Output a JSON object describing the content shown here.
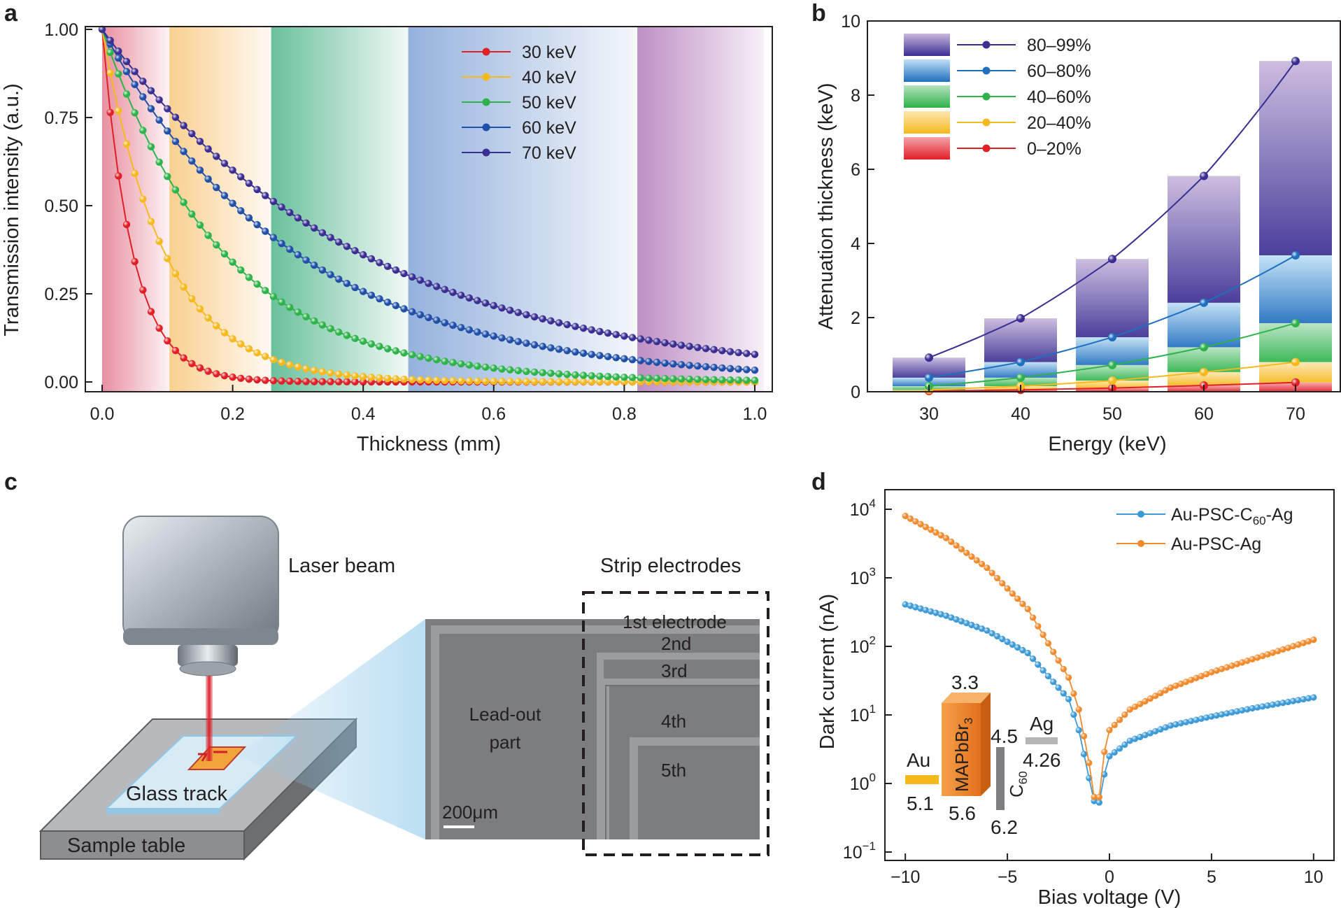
{
  "panel_labels": [
    "a",
    "b",
    "c",
    "d"
  ],
  "chart_data": [
    {
      "panel": "a",
      "type": "line",
      "xlabel": "Thickness (mm)",
      "ylabel": "Transmission intensity (a.u.)",
      "xlim": [
        0.0,
        1.0
      ],
      "ylim": [
        0.0,
        1.0
      ],
      "xticks": [
        "0.0",
        "0.2",
        "0.4",
        "0.6",
        "0.8",
        "1.0"
      ],
      "yticks": [
        "0.00",
        "0.25",
        "0.50",
        "0.75",
        "1.00"
      ],
      "bands": [
        {
          "from": 0.0,
          "to": 0.103,
          "color": "#e06a80"
        },
        {
          "from": 0.103,
          "to": 0.259,
          "color": "#f7c06a"
        },
        {
          "from": 0.259,
          "to": 0.469,
          "color": "#4fb58a"
        },
        {
          "from": 0.469,
          "to": 0.82,
          "color": "#7a9fd4"
        },
        {
          "from": 0.82,
          "to": 1.0,
          "color": "#a86ab0"
        }
      ],
      "series": [
        {
          "name": "30 keV",
          "color": "#e01f26",
          "mu": 21.5
        },
        {
          "name": "40 keV",
          "color": "#f5b91d",
          "mu": 10.5
        },
        {
          "name": "50 keV",
          "color": "#2db34a",
          "mu": 5.4
        },
        {
          "name": "60 keV",
          "color": "#1f4fa8",
          "mu": 3.4
        },
        {
          "name": "70 keV",
          "color": "#3b2e93",
          "mu": 2.55
        }
      ],
      "x": [
        0.0,
        0.0125,
        0.025,
        0.0375,
        0.05,
        0.0625,
        0.075,
        0.0875,
        0.1,
        0.1125,
        0.125,
        0.1375,
        0.15,
        0.1625,
        0.175,
        0.1875,
        0.2,
        0.2125,
        0.225,
        0.2375,
        0.25,
        0.2625,
        0.275,
        0.2875,
        0.3,
        0.3125,
        0.325,
        0.3375,
        0.35,
        0.3625,
        0.375,
        0.3875,
        0.4,
        0.4125,
        0.425,
        0.4375,
        0.45,
        0.4625,
        0.475,
        0.4875,
        0.5,
        0.5125,
        0.525,
        0.5375,
        0.55,
        0.5625,
        0.575,
        0.5875,
        0.6,
        0.6125,
        0.625,
        0.6375,
        0.65,
        0.6625,
        0.675,
        0.6875,
        0.7,
        0.7125,
        0.725,
        0.7375,
        0.75,
        0.7625,
        0.775,
        0.7875,
        0.8,
        0.8125,
        0.825,
        0.8375,
        0.85,
        0.8625,
        0.875,
        0.8875,
        0.9,
        0.9125,
        0.925,
        0.9375,
        0.95,
        0.9625,
        0.975,
        0.9875,
        1.0
      ]
    },
    {
      "panel": "b",
      "type": "bar",
      "xlabel": "Energy (keV)",
      "ylabel": "Attenuation thickness (keV)",
      "categories": [
        "30",
        "40",
        "50",
        "60",
        "70"
      ],
      "ylim": [
        0,
        10
      ],
      "yticks": [
        "0",
        "2",
        "4",
        "6",
        "8",
        "10"
      ],
      "boundaries": [
        {
          "name": "0–20%",
          "color": "#e01f26",
          "values": [
            0.02,
            0.05,
            0.1,
            0.17,
            0.25
          ]
        },
        {
          "name": "20–40%",
          "color": "#f5b91d",
          "values": [
            0.05,
            0.15,
            0.3,
            0.53,
            0.8
          ]
        },
        {
          "name": "40–60%",
          "color": "#2db34a",
          "values": [
            0.15,
            0.38,
            0.72,
            1.2,
            1.85
          ]
        },
        {
          "name": "60–80%",
          "color": "#1f6fbf",
          "values": [
            0.38,
            0.8,
            1.47,
            2.4,
            3.68
          ]
        },
        {
          "name": "80–99%",
          "color": "#3b2e93",
          "values": [
            0.92,
            1.98,
            3.58,
            5.82,
            8.92
          ]
        }
      ],
      "legend_order": [
        "80–99%",
        "60–80%",
        "40–60%",
        "20–40%",
        "0–20%"
      ]
    },
    {
      "panel": "d",
      "type": "line",
      "xlabel": "Bias voltage (V)",
      "ylabel": "Dark current (nA)",
      "yscale": "log",
      "xlim": [
        -11,
        11
      ],
      "ylim_exp": [
        -1,
        4
      ],
      "xticks": [
        "−10",
        "−5",
        "0",
        "5",
        "10"
      ],
      "yticks": [
        "10",
        "10",
        "10",
        "10",
        "10",
        "10"
      ],
      "ytick_exponents": [
        "−1",
        "0",
        "1",
        "2",
        "3",
        "4"
      ],
      "series": [
        {
          "name": "Au-PSC-C",
          "name_sub": "60",
          "name_tail": "-Ag",
          "color": "#3c9ad6",
          "points": [
            [
              -10,
              410
            ],
            [
              -8,
              280
            ],
            [
              -6,
              170
            ],
            [
              -4,
              80
            ],
            [
              -2,
              17
            ],
            [
              -1.5,
              6
            ],
            [
              -1,
              1.2
            ],
            [
              -0.6,
              0.35
            ],
            [
              -0.3,
              1.2
            ],
            [
              0,
              2.5
            ],
            [
              1,
              4.2
            ],
            [
              3,
              7
            ],
            [
              5,
              9.5
            ],
            [
              7,
              12.5
            ],
            [
              10,
              18
            ]
          ]
        },
        {
          "name": "Au-PSC-Ag",
          "name_sub": "",
          "name_tail": "",
          "color": "#f08a2c",
          "points": [
            [
              -10,
              8000
            ],
            [
              -8,
              3800
            ],
            [
              -6,
              1400
            ],
            [
              -4,
              350
            ],
            [
              -2,
              35
            ],
            [
              -1.5,
              12
            ],
            [
              -1,
              2
            ],
            [
              -0.6,
              0.32
            ],
            [
              -0.3,
              2.5
            ],
            [
              0,
              6
            ],
            [
              1,
              12
            ],
            [
              3,
              25
            ],
            [
              5,
              42
            ],
            [
              7,
              65
            ],
            [
              10,
              125
            ]
          ]
        }
      ],
      "inset": {
        "Au": {
          "label": "Au",
          "value": "5.1"
        },
        "psc": {
          "label": "MAPbBr",
          "sub": "3",
          "top": "3.3",
          "bottom": "5.6"
        },
        "c60": {
          "label": "C",
          "sub": "60",
          "top": "4.5",
          "bottom": "6.2"
        },
        "Ag": {
          "label": "Ag",
          "value": "4.26"
        }
      }
    }
  ],
  "panel_c": {
    "laser_beam": "Laser beam",
    "glass_track": "Glass track",
    "sample_table": "Sample table",
    "strip_electrodes": "Strip electrodes",
    "electrode_1": "1st  electrode",
    "electrode_2": "2nd",
    "electrode_3": "3rd",
    "electrode_4": "4th",
    "electrode_5": "5th",
    "lead_out_1": "Lead-out",
    "lead_out_2": "part",
    "scale_bar": "200μm"
  }
}
